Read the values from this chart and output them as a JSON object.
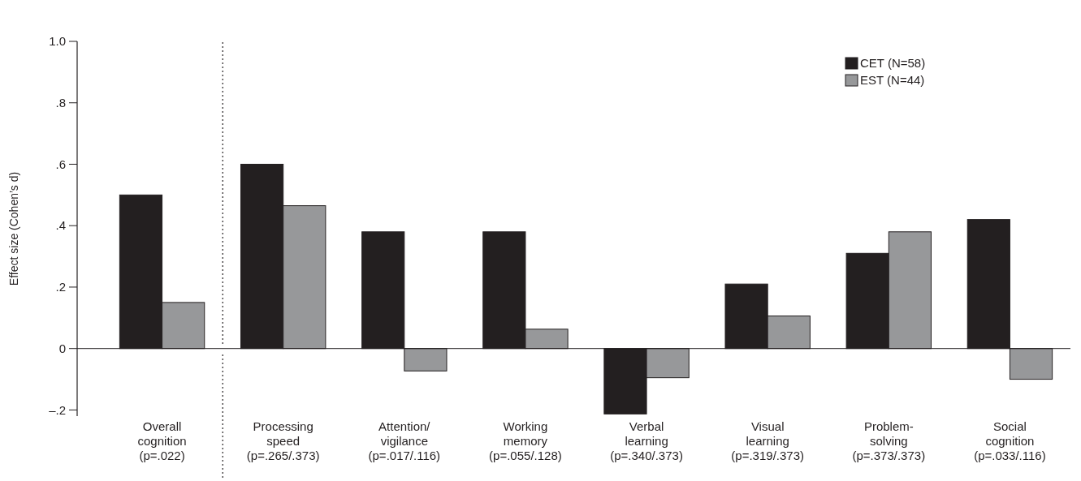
{
  "chart_data": {
    "type": "bar",
    "ylabel": "Effect size (Cohen’s d)",
    "categories": [
      "Overall\ncognition\n(p=.022)",
      "Processing\nspeed\n(p=.265/.373)",
      "Attention/\nvigilance\n(p=.017/.116)",
      "Working\nmemory\n(p=.055/.128)",
      "Verbal\nlearning\n(p=.340/.373)",
      "Visual\nlearning\n(p=.319/.373)",
      "Problem-\nsolving\n(p=.373/.373)",
      "Social\ncognition\n(p=.033/.116)"
    ],
    "series": [
      {
        "name": "CET (N=58)",
        "color": "#231f20",
        "values": [
          0.5,
          0.6,
          0.38,
          0.38,
          -0.213,
          0.21,
          0.31,
          0.42
        ]
      },
      {
        "name": "EST (N=44)",
        "color": "#97989a",
        "values": [
          0.15,
          0.465,
          -0.073,
          0.063,
          -0.095,
          0.106,
          0.38,
          -0.1
        ]
      }
    ],
    "ylim": [
      -0.22,
      1.0
    ],
    "yticks": [
      {
        "value": -0.2,
        "label": "–.2"
      },
      0,
      {
        "value": 0.2,
        "label": ".2"
      },
      {
        "value": 0.4,
        "label": ".4"
      },
      {
        "value": 0.6,
        "label": ".6"
      },
      {
        "value": 0.8,
        "label": ".8"
      },
      {
        "value": 1.0,
        "label": "1.0"
      }
    ],
    "legend": "top right"
  }
}
